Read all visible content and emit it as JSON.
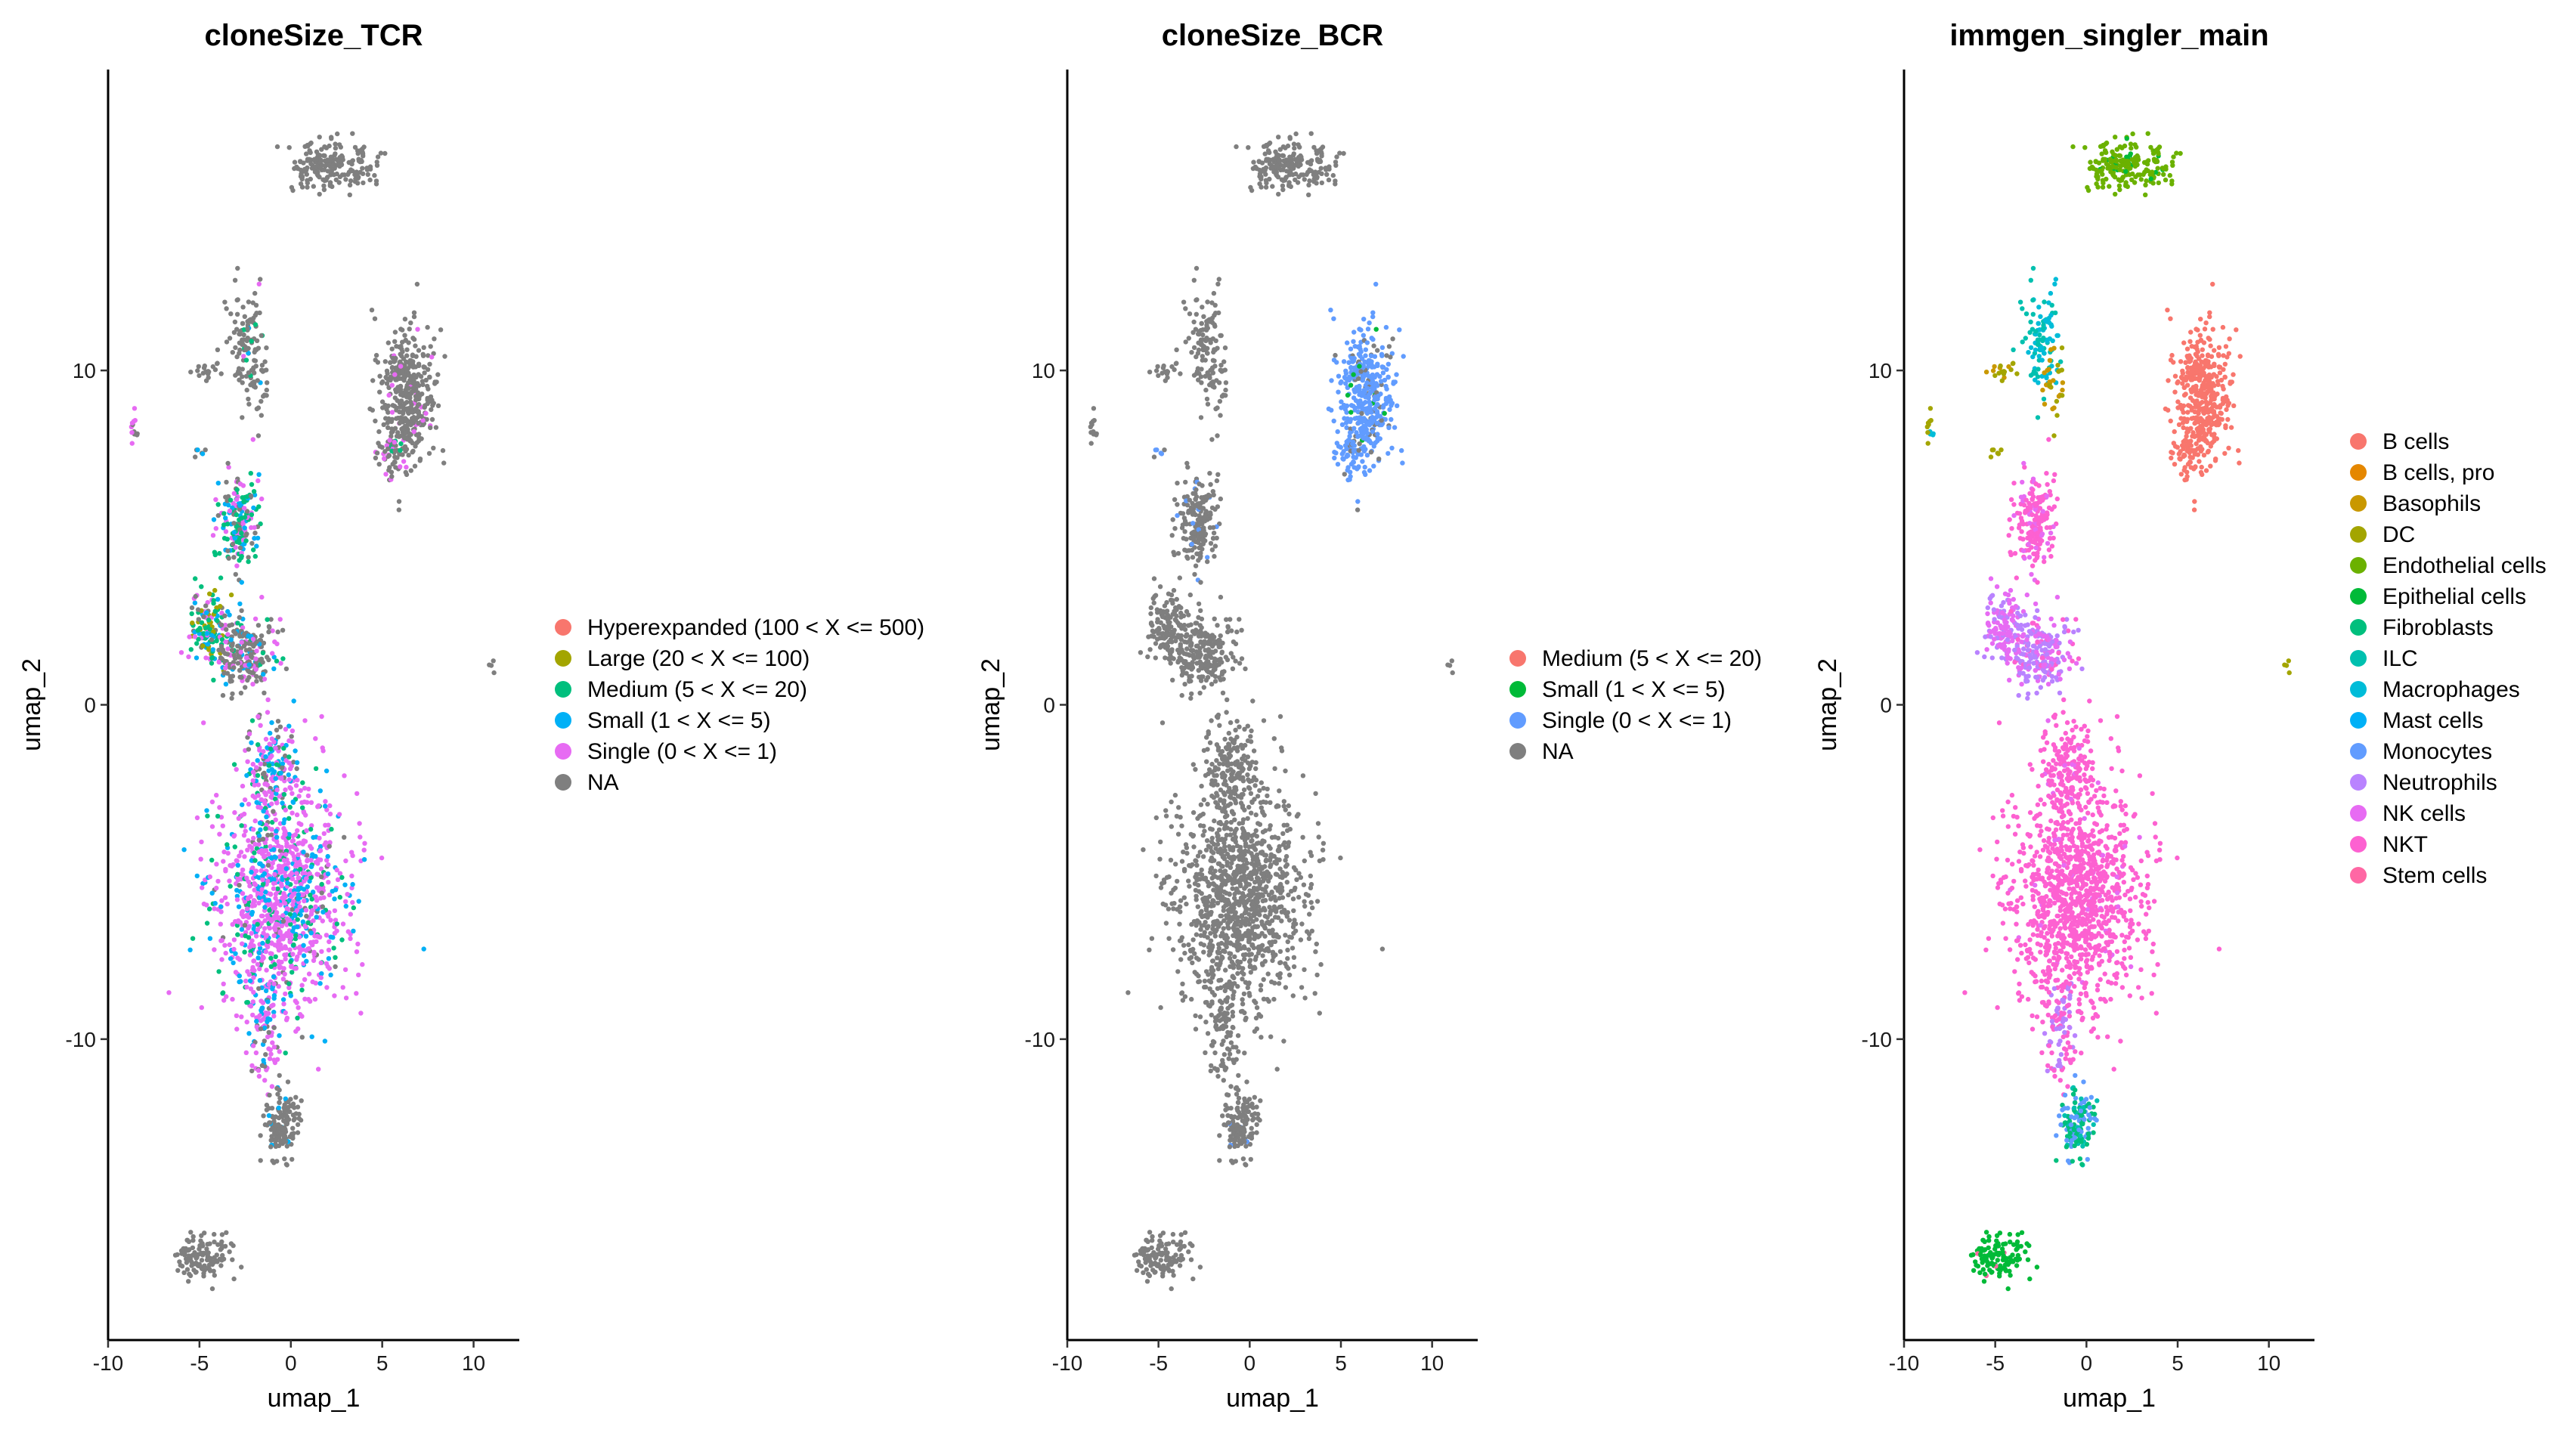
{
  "chart_data": [
    {
      "type": "scatter",
      "title": "cloneSize_TCR",
      "xlabel": "umap_1",
      "ylabel": "umap_2",
      "xlim": [
        -10,
        12.5
      ],
      "ylim": [
        -19,
        19
      ],
      "xticks": [
        -10,
        -5,
        0,
        5,
        10
      ],
      "xtick_labels": [
        "-10",
        "-5",
        "0",
        "5",
        "10"
      ],
      "yticks": [
        -10,
        0,
        10
      ],
      "ytick_labels": [
        "-10",
        "0",
        "10"
      ],
      "legend": [
        {
          "label": "Hyperexpanded (100 < X <= 500)",
          "color": "#F8766D"
        },
        {
          "label": "Large (20 < X <= 100)",
          "color": "#A3A500"
        },
        {
          "label": "Medium (5 < X <= 20)",
          "color": "#00BF7D"
        },
        {
          "label": "Small (1 < X <= 5)",
          "color": "#00B0F6"
        },
        {
          "label": "Single (0 < X <= 1)",
          "color": "#E76BF3"
        },
        {
          "label": "NA",
          "color": "#7F7F7F"
        }
      ],
      "clusters": [
        {
          "cx": 1.5,
          "cy": 16.2,
          "rx": 1.6,
          "ry": 0.8,
          "n": 130,
          "colors": {
            "#7F7F7F": 1
          }
        },
        {
          "cx": 3.5,
          "cy": 16.1,
          "rx": 1.2,
          "ry": 0.6,
          "n": 70,
          "colors": {
            "#7F7F7F": 1
          }
        },
        {
          "cx": -2.5,
          "cy": 11.0,
          "rx": 0.9,
          "ry": 1.4,
          "n": 100,
          "colors": {
            "#7F7F7F": 0.85,
            "#00BF7D": 0.05,
            "#00B0F6": 0.05,
            "#E76BF3": 0.05
          }
        },
        {
          "cx": -4.5,
          "cy": 10.0,
          "rx": 0.7,
          "ry": 0.3,
          "n": 20,
          "colors": {
            "#7F7F7F": 1
          }
        },
        {
          "cx": -1.8,
          "cy": 9.5,
          "rx": 0.5,
          "ry": 0.9,
          "n": 30,
          "colors": {
            "#7F7F7F": 1
          }
        },
        {
          "cx": 6.4,
          "cy": 9.3,
          "rx": 1.4,
          "ry": 1.8,
          "n": 400,
          "colors": {
            "#7F7F7F": 0.95,
            "#E76BF3": 0.05
          }
        },
        {
          "cx": 5.5,
          "cy": 7.5,
          "rx": 0.8,
          "ry": 0.6,
          "n": 50,
          "colors": {
            "#7F7F7F": 0.6,
            "#E76BF3": 0.3,
            "#00BF7D": 0.1
          }
        },
        {
          "cx": -8.6,
          "cy": 8.2,
          "rx": 0.2,
          "ry": 0.5,
          "n": 12,
          "colors": {
            "#7F7F7F": 0.7,
            "#E76BF3": 0.3
          }
        },
        {
          "cx": -5.0,
          "cy": 7.5,
          "rx": 0.3,
          "ry": 0.2,
          "n": 6,
          "colors": {
            "#00B0F6": 0.5,
            "#7F7F7F": 0.5
          }
        },
        {
          "cx": -2.8,
          "cy": 5.5,
          "rx": 1.0,
          "ry": 1.3,
          "n": 180,
          "colors": {
            "#00BF7D": 0.3,
            "#00B0F6": 0.25,
            "#E76BF3": 0.25,
            "#7F7F7F": 0.2
          }
        },
        {
          "cx": -4.5,
          "cy": 2.2,
          "rx": 0.9,
          "ry": 1.0,
          "n": 140,
          "colors": {
            "#00BF7D": 0.35,
            "#A3A500": 0.2,
            "#00B0F6": 0.2,
            "#E76BF3": 0.15,
            "#7F7F7F": 0.1
          }
        },
        {
          "cx": -2.4,
          "cy": 1.5,
          "rx": 1.5,
          "ry": 1.1,
          "n": 220,
          "colors": {
            "#7F7F7F": 0.6,
            "#00B0F6": 0.15,
            "#E76BF3": 0.15,
            "#00BF7D": 0.1
          }
        },
        {
          "cx": -1.0,
          "cy": -2.0,
          "rx": 1.3,
          "ry": 1.6,
          "n": 180,
          "colors": {
            "#E76BF3": 0.5,
            "#00B0F6": 0.25,
            "#7F7F7F": 0.15,
            "#00BF7D": 0.1
          }
        },
        {
          "cx": -0.5,
          "cy": -5.8,
          "rx": 3.3,
          "ry": 3.0,
          "n": 1100,
          "colors": {
            "#E76BF3": 0.65,
            "#00B0F6": 0.18,
            "#00BF7D": 0.12,
            "#7F7F7F": 0.05
          }
        },
        {
          "cx": -1.5,
          "cy": -9.8,
          "rx": 0.8,
          "ry": 1.4,
          "n": 90,
          "colors": {
            "#E76BF3": 0.6,
            "#00B0F6": 0.2,
            "#7F7F7F": 0.2
          }
        },
        {
          "cx": -0.5,
          "cy": -12.5,
          "rx": 0.9,
          "ry": 1.0,
          "n": 140,
          "colors": {
            "#7F7F7F": 0.95,
            "#00B0F6": 0.05
          }
        },
        {
          "cx": -4.8,
          "cy": -16.5,
          "rx": 1.3,
          "ry": 0.7,
          "n": 120,
          "colors": {
            "#7F7F7F": 1
          }
        },
        {
          "cx": 11.0,
          "cy": 1.2,
          "rx": 0.2,
          "ry": 0.2,
          "n": 4,
          "colors": {
            "#7F7F7F": 1
          }
        }
      ]
    },
    {
      "type": "scatter",
      "title": "cloneSize_BCR",
      "xlabel": "umap_1",
      "ylabel": "umap_2",
      "xlim": [
        -10,
        12.5
      ],
      "ylim": [
        -19,
        19
      ],
      "xticks": [
        -10,
        -5,
        0,
        5,
        10
      ],
      "xtick_labels": [
        "-10",
        "-5",
        "0",
        "5",
        "10"
      ],
      "yticks": [
        -10,
        0,
        10
      ],
      "ytick_labels": [
        "-10",
        "0",
        "10"
      ],
      "legend": [
        {
          "label": "Medium (5 < X <= 20)",
          "color": "#F8766D"
        },
        {
          "label": "Small (1 < X <= 5)",
          "color": "#00BA38"
        },
        {
          "label": "Single (0 < X <= 1)",
          "color": "#619CFF"
        },
        {
          "label": "NA",
          "color": "#7F7F7F"
        }
      ],
      "clusters": [
        {
          "cx": 1.5,
          "cy": 16.2,
          "rx": 1.6,
          "ry": 0.8,
          "n": 130,
          "colors": {
            "#7F7F7F": 1
          }
        },
        {
          "cx": 3.5,
          "cy": 16.1,
          "rx": 1.2,
          "ry": 0.6,
          "n": 70,
          "colors": {
            "#7F7F7F": 1
          }
        },
        {
          "cx": -2.5,
          "cy": 11.0,
          "rx": 0.9,
          "ry": 1.4,
          "n": 100,
          "colors": {
            "#7F7F7F": 1
          }
        },
        {
          "cx": -4.5,
          "cy": 10.0,
          "rx": 0.7,
          "ry": 0.3,
          "n": 20,
          "colors": {
            "#7F7F7F": 1
          }
        },
        {
          "cx": -1.8,
          "cy": 9.5,
          "rx": 0.5,
          "ry": 0.9,
          "n": 30,
          "colors": {
            "#7F7F7F": 1
          }
        },
        {
          "cx": 6.4,
          "cy": 9.3,
          "rx": 1.4,
          "ry": 1.8,
          "n": 400,
          "colors": {
            "#619CFF": 0.85,
            "#7F7F7F": 0.12,
            "#00BA38": 0.03
          }
        },
        {
          "cx": 5.5,
          "cy": 7.5,
          "rx": 0.8,
          "ry": 0.6,
          "n": 50,
          "colors": {
            "#619CFF": 0.9,
            "#7F7F7F": 0.1
          }
        },
        {
          "cx": -8.6,
          "cy": 8.2,
          "rx": 0.2,
          "ry": 0.5,
          "n": 12,
          "colors": {
            "#7F7F7F": 1
          }
        },
        {
          "cx": -5.0,
          "cy": 7.5,
          "rx": 0.3,
          "ry": 0.2,
          "n": 6,
          "colors": {
            "#619CFF": 0.6,
            "#7F7F7F": 0.4
          }
        },
        {
          "cx": -2.8,
          "cy": 5.5,
          "rx": 1.0,
          "ry": 1.3,
          "n": 180,
          "colors": {
            "#7F7F7F": 0.95,
            "#619CFF": 0.05
          }
        },
        {
          "cx": -4.5,
          "cy": 2.2,
          "rx": 0.9,
          "ry": 1.0,
          "n": 140,
          "colors": {
            "#7F7F7F": 1
          }
        },
        {
          "cx": -2.4,
          "cy": 1.5,
          "rx": 1.5,
          "ry": 1.1,
          "n": 220,
          "colors": {
            "#7F7F7F": 1
          }
        },
        {
          "cx": -1.0,
          "cy": -2.0,
          "rx": 1.3,
          "ry": 1.6,
          "n": 180,
          "colors": {
            "#7F7F7F": 1
          }
        },
        {
          "cx": -0.5,
          "cy": -5.8,
          "rx": 3.3,
          "ry": 3.0,
          "n": 1100,
          "colors": {
            "#7F7F7F": 1
          }
        },
        {
          "cx": -1.5,
          "cy": -9.8,
          "rx": 0.8,
          "ry": 1.4,
          "n": 90,
          "colors": {
            "#7F7F7F": 1
          }
        },
        {
          "cx": -0.5,
          "cy": -12.5,
          "rx": 0.9,
          "ry": 1.0,
          "n": 140,
          "colors": {
            "#7F7F7F": 0.97,
            "#619CFF": 0.03
          }
        },
        {
          "cx": -4.8,
          "cy": -16.5,
          "rx": 1.3,
          "ry": 0.7,
          "n": 120,
          "colors": {
            "#7F7F7F": 1
          }
        },
        {
          "cx": 11.0,
          "cy": 1.2,
          "rx": 0.2,
          "ry": 0.2,
          "n": 4,
          "colors": {
            "#7F7F7F": 1
          }
        }
      ]
    },
    {
      "type": "scatter",
      "title": "immgen_singler_main",
      "xlabel": "umap_1",
      "ylabel": "umap_2",
      "xlim": [
        -10,
        12.5
      ],
      "ylim": [
        -19,
        19
      ],
      "xticks": [
        -10,
        -5,
        0,
        5,
        10
      ],
      "xtick_labels": [
        "-10",
        "-5",
        "0",
        "5",
        "10"
      ],
      "yticks": [
        -10,
        0,
        10
      ],
      "ytick_labels": [
        "-10",
        "0",
        "10"
      ],
      "legend": [
        {
          "label": "B cells",
          "color": "#F8766D"
        },
        {
          "label": "B cells, pro",
          "color": "#E58700"
        },
        {
          "label": "Basophils",
          "color": "#C99800"
        },
        {
          "label": "DC",
          "color": "#A3A500"
        },
        {
          "label": "Endothelial cells",
          "color": "#6BB100"
        },
        {
          "label": "Epithelial cells",
          "color": "#00BA38"
        },
        {
          "label": "Fibroblasts",
          "color": "#00BF7D"
        },
        {
          "label": "ILC",
          "color": "#00C0AF"
        },
        {
          "label": "Macrophages",
          "color": "#00BCD8"
        },
        {
          "label": "Mast cells",
          "color": "#00B0F6"
        },
        {
          "label": "Monocytes",
          "color": "#619CFF"
        },
        {
          "label": "Neutrophils",
          "color": "#B983FF"
        },
        {
          "label": "NK cells",
          "color": "#E76BF3"
        },
        {
          "label": "NKT",
          "color": "#FD61D1"
        },
        {
          "label": "Stem cells",
          "color": "#FF67A4"
        }
      ],
      "clusters": [
        {
          "cx": 1.5,
          "cy": 16.2,
          "rx": 1.6,
          "ry": 0.8,
          "n": 130,
          "colors": {
            "#6BB100": 0.9,
            "#00BA38": 0.1
          }
        },
        {
          "cx": 3.5,
          "cy": 16.1,
          "rx": 1.2,
          "ry": 0.6,
          "n": 70,
          "colors": {
            "#6BB100": 0.9,
            "#00BA38": 0.1
          }
        },
        {
          "cx": -2.5,
          "cy": 11.0,
          "rx": 0.9,
          "ry": 1.4,
          "n": 100,
          "colors": {
            "#00C0AF": 0.5,
            "#00BCD8": 0.5
          }
        },
        {
          "cx": -4.5,
          "cy": 10.0,
          "rx": 0.7,
          "ry": 0.3,
          "n": 20,
          "colors": {
            "#A3A500": 0.6,
            "#C99800": 0.4
          }
        },
        {
          "cx": -1.8,
          "cy": 9.5,
          "rx": 0.5,
          "ry": 0.9,
          "n": 30,
          "colors": {
            "#C99800": 0.6,
            "#A3A500": 0.4
          }
        },
        {
          "cx": 6.4,
          "cy": 9.3,
          "rx": 1.4,
          "ry": 1.8,
          "n": 400,
          "colors": {
            "#F8766D": 1
          }
        },
        {
          "cx": 5.5,
          "cy": 7.5,
          "rx": 0.8,
          "ry": 0.6,
          "n": 50,
          "colors": {
            "#F8766D": 1
          }
        },
        {
          "cx": -8.6,
          "cy": 8.2,
          "rx": 0.2,
          "ry": 0.5,
          "n": 12,
          "colors": {
            "#00BCD8": 0.5,
            "#A3A500": 0.5
          }
        },
        {
          "cx": -5.0,
          "cy": 7.5,
          "rx": 0.3,
          "ry": 0.2,
          "n": 6,
          "colors": {
            "#A3A500": 1
          }
        },
        {
          "cx": -2.8,
          "cy": 5.5,
          "rx": 1.0,
          "ry": 1.3,
          "n": 180,
          "colors": {
            "#FD61D1": 0.8,
            "#E76BF3": 0.2
          }
        },
        {
          "cx": -4.5,
          "cy": 2.2,
          "rx": 0.9,
          "ry": 1.0,
          "n": 140,
          "colors": {
            "#E76BF3": 0.7,
            "#B983FF": 0.3
          }
        },
        {
          "cx": -2.4,
          "cy": 1.5,
          "rx": 1.5,
          "ry": 1.1,
          "n": 220,
          "colors": {
            "#B983FF": 0.55,
            "#E76BF3": 0.3,
            "#FD61D1": 0.15
          }
        },
        {
          "cx": -1.0,
          "cy": -2.0,
          "rx": 1.3,
          "ry": 1.6,
          "n": 180,
          "colors": {
            "#FD61D1": 0.9,
            "#E76BF3": 0.1
          }
        },
        {
          "cx": -0.5,
          "cy": -5.8,
          "rx": 3.3,
          "ry": 3.0,
          "n": 1100,
          "colors": {
            "#FD61D1": 0.97,
            "#E76BF3": 0.03
          }
        },
        {
          "cx": -1.5,
          "cy": -9.8,
          "rx": 0.8,
          "ry": 1.4,
          "n": 90,
          "colors": {
            "#FD61D1": 0.6,
            "#B983FF": 0.4
          }
        },
        {
          "cx": -0.5,
          "cy": -12.5,
          "rx": 0.9,
          "ry": 1.0,
          "n": 140,
          "colors": {
            "#00BF7D": 0.4,
            "#619CFF": 0.4,
            "#00C0AF": 0.2
          }
        },
        {
          "cx": -4.8,
          "cy": -16.5,
          "rx": 1.3,
          "ry": 0.7,
          "n": 120,
          "colors": {
            "#00BA38": 0.95,
            "#FF67A4": 0.05
          }
        },
        {
          "cx": 11.0,
          "cy": 1.2,
          "rx": 0.2,
          "ry": 0.2,
          "n": 4,
          "colors": {
            "#A3A500": 1
          }
        }
      ]
    }
  ]
}
